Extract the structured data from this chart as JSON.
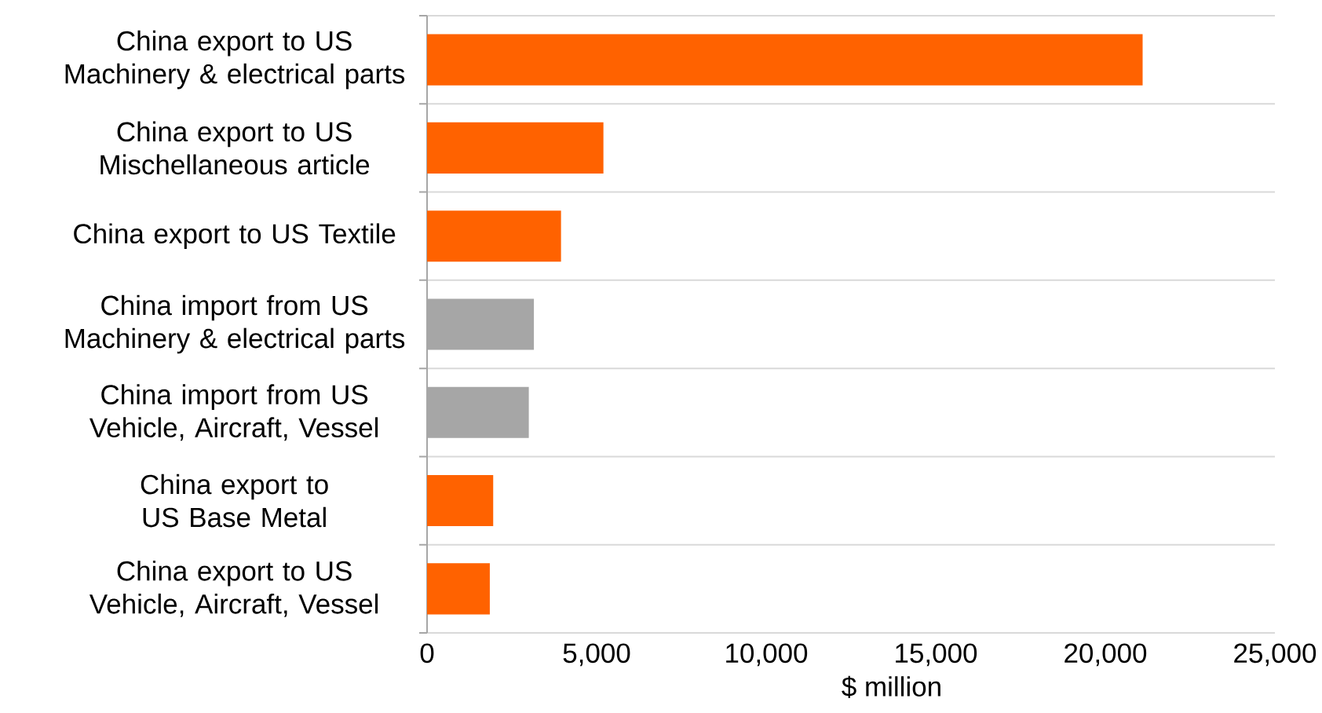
{
  "chart_data": {
    "type": "bar",
    "orientation": "horizontal",
    "xlabel": "$ million",
    "categories": [
      "China export to US Machinery & electrical parts",
      "China export to US Mischellaneous article",
      "China export to US Textile",
      "China import from US Machinery & electrical parts",
      "China import from US Vehicle, Aircraft, Vessel",
      "China export to US Base Metal",
      "China export to US Vehicle, Aircraft, Vessel"
    ],
    "values": [
      21100,
      5200,
      3950,
      3150,
      3000,
      1950,
      1850
    ],
    "colors": [
      "#ff6200",
      "#ff6200",
      "#ff6200",
      "#a6a6a6",
      "#a6a6a6",
      "#ff6200",
      "#ff6200"
    ],
    "xlim": [
      0,
      25000
    ],
    "xticks": [
      0,
      {
        "value": 5000,
        "label": "5,000"
      },
      {
        "value": 10000,
        "label": "10,000"
      },
      {
        "value": 15000,
        "label": "15,000"
      },
      {
        "value": 20000,
        "label": "20,000"
      },
      {
        "value": 25000,
        "label": "25,000"
      }
    ],
    "grid": "y"
  }
}
